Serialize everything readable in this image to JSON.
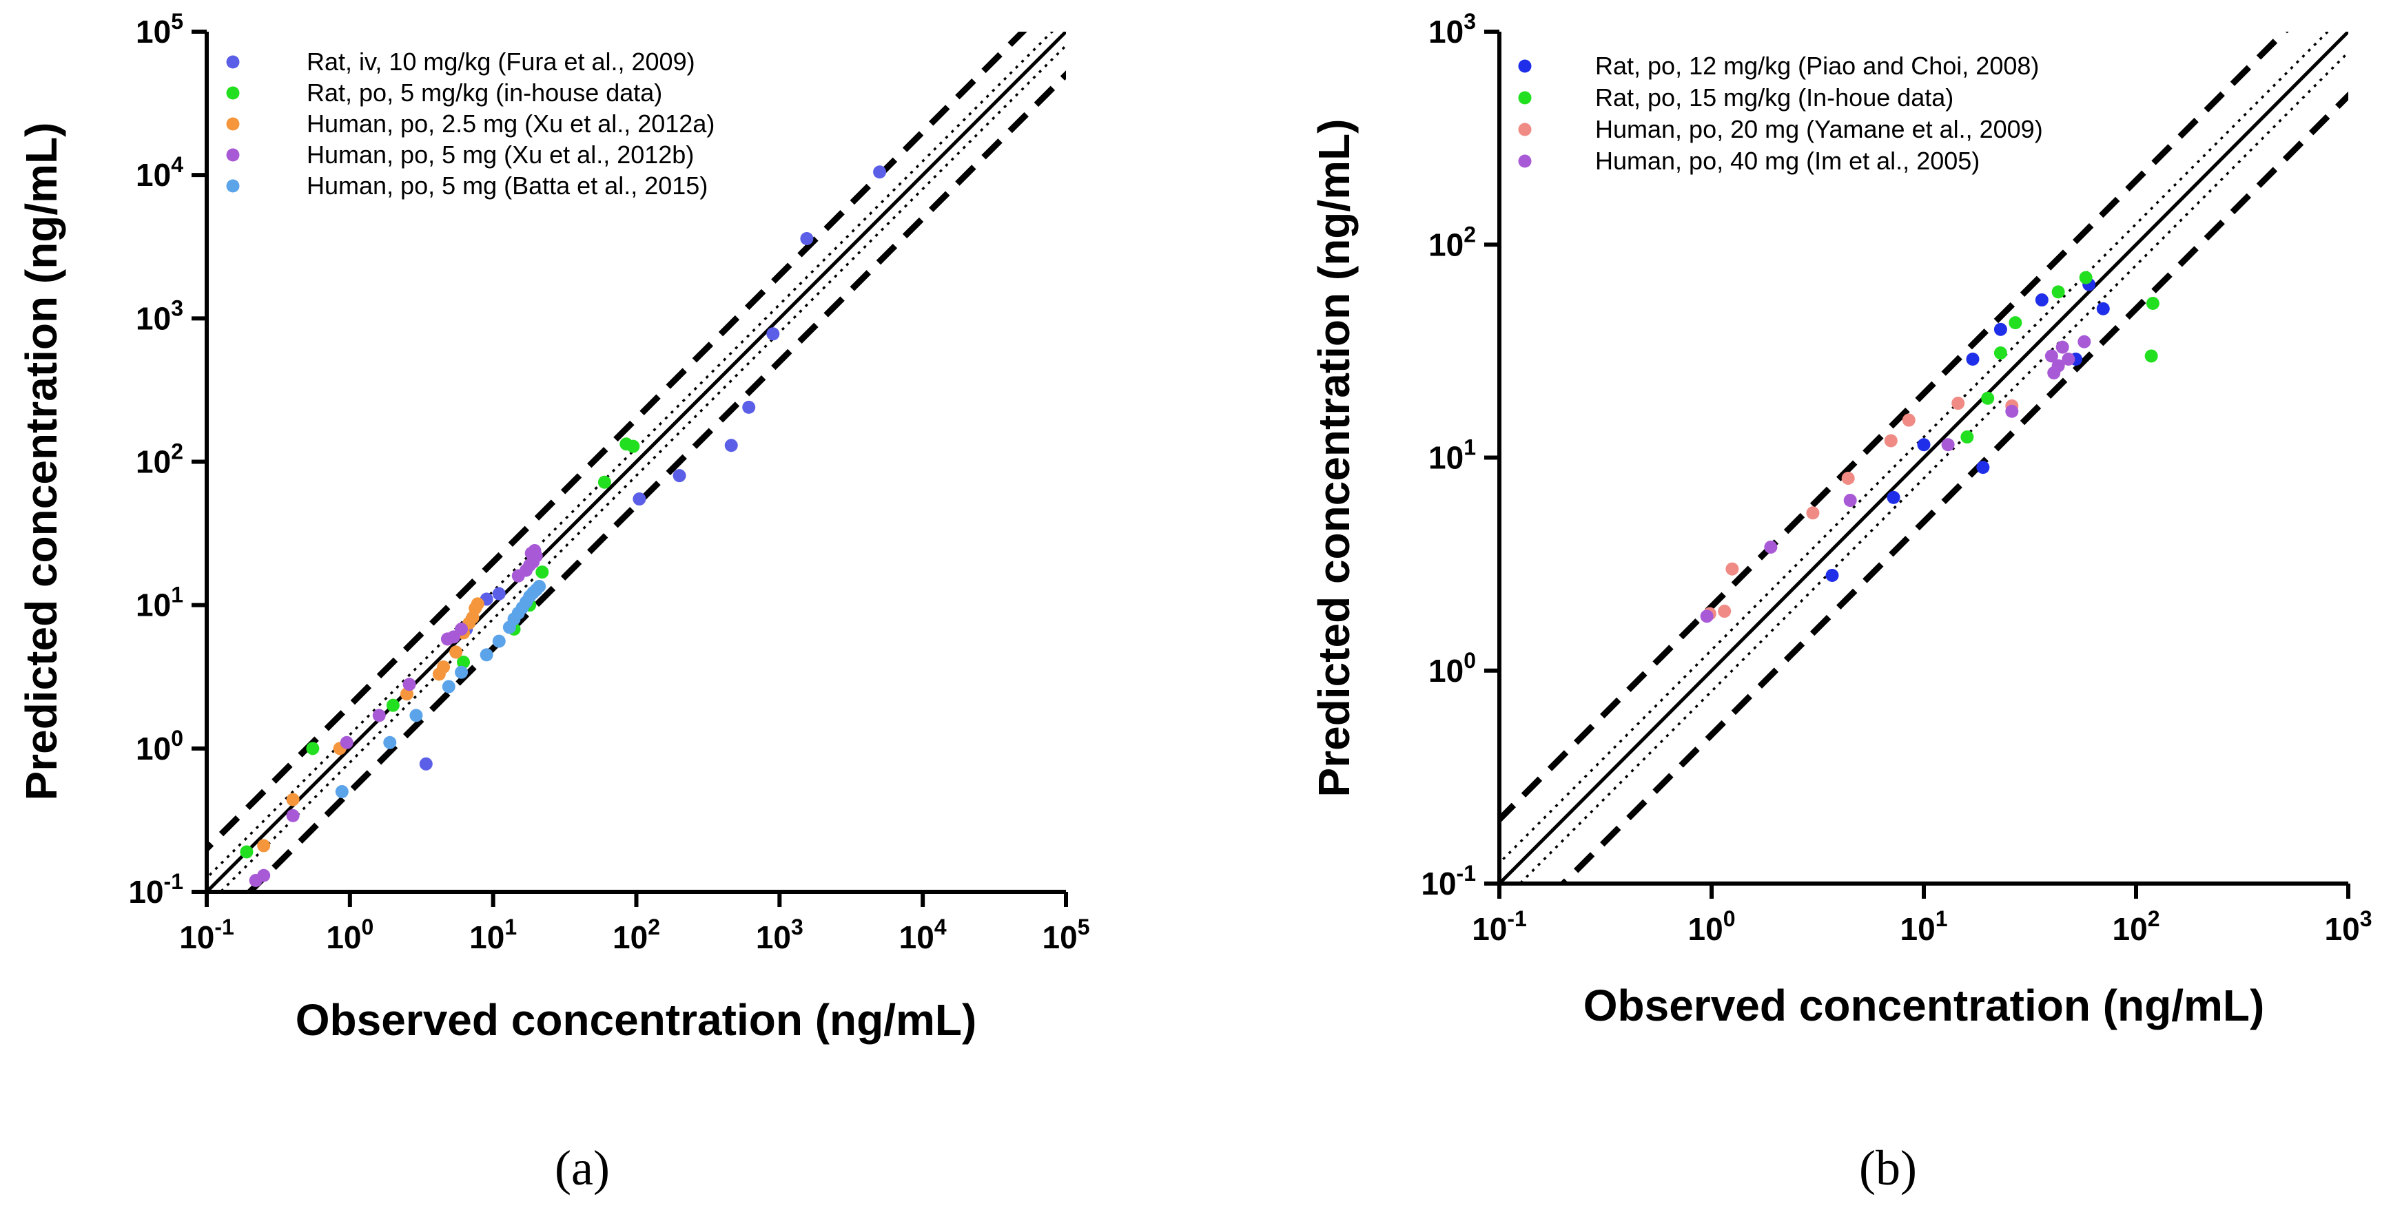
{
  "figure": {
    "panels": [
      {
        "letter": "a",
        "caption": "(a)"
      },
      {
        "letter": "b",
        "caption": "(b)"
      }
    ]
  },
  "chart_data": [
    {
      "type": "scatter",
      "panel": "(a)",
      "xlabel": "Observed concentration (ng/mL)",
      "ylabel": "Predicted concentration (ng/mL)",
      "xscale": "log",
      "yscale": "log",
      "xlim": [
        0.1,
        100000
      ],
      "ylim": [
        0.1,
        100000
      ],
      "xticks": [
        {
          "base": "10",
          "exp": "-1"
        },
        {
          "base": "10",
          "exp": "0"
        },
        {
          "base": "10",
          "exp": "1"
        },
        {
          "base": "10",
          "exp": "2"
        },
        {
          "base": "10",
          "exp": "3"
        },
        {
          "base": "10",
          "exp": "4"
        },
        {
          "base": "10",
          "exp": "5"
        }
      ],
      "yticks": [
        {
          "base": "10",
          "exp": "-1"
        },
        {
          "base": "10",
          "exp": "0"
        },
        {
          "base": "10",
          "exp": "1"
        },
        {
          "base": "10",
          "exp": "2"
        },
        {
          "base": "10",
          "exp": "3"
        },
        {
          "base": "10",
          "exp": "4"
        },
        {
          "base": "10",
          "exp": "5"
        }
      ],
      "reference_lines": [
        {
          "name": "line of identity",
          "fold": 1,
          "style": "solid"
        },
        {
          "name": "1.25-fold",
          "fold": 1.25,
          "style": "dotted"
        },
        {
          "name": "0.8-fold",
          "fold": 0.8,
          "style": "dotted"
        },
        {
          "name": "2-fold",
          "fold": 2,
          "style": "dashed"
        },
        {
          "name": "0.5-fold",
          "fold": 0.5,
          "style": "dashed"
        }
      ],
      "legend_position": "top-left",
      "series": [
        {
          "name": "Rat, iv, 10 mg/kg (Fura et al., 2009)",
          "color": "#5b5ee6",
          "points": [
            [
              5000,
              10500
            ],
            [
              1550,
              3600
            ],
            [
              900,
              780
            ],
            [
              610,
              240
            ],
            [
              460,
              130
            ],
            [
              200,
              80
            ],
            [
              105,
              55
            ],
            [
              3.4,
              0.78
            ],
            [
              11,
              12
            ],
            [
              6.5,
              6.8
            ],
            [
              9,
              11
            ]
          ]
        },
        {
          "name": "Rat, po, 5 mg/kg (in-house data)",
          "color": "#22e01f",
          "points": [
            [
              0.19,
              0.19
            ],
            [
              0.55,
              1.0
            ],
            [
              2.0,
              2.0
            ],
            [
              6.2,
              4.0
            ],
            [
              14,
              6.8
            ],
            [
              18,
              10
            ],
            [
              22,
              17
            ],
            [
              60,
              72
            ],
            [
              85,
              133
            ],
            [
              95,
              128
            ]
          ]
        },
        {
          "name": "Human, po, 2.5 mg (Xu et al., 2012a)",
          "color": "#f5963c",
          "points": [
            [
              0.25,
              0.21
            ],
            [
              0.4,
              0.44
            ],
            [
              0.85,
              1.0
            ],
            [
              2.5,
              2.4
            ],
            [
              4.2,
              3.3
            ],
            [
              4.5,
              3.7
            ],
            [
              5.5,
              4.7
            ],
            [
              6.2,
              6.4
            ],
            [
              6.8,
              7.5
            ],
            [
              7.2,
              8.2
            ],
            [
              7.5,
              9.5
            ],
            [
              7.8,
              10.2
            ]
          ]
        },
        {
          "name": "Human, po, 5 mg (Xu et al., 2012b)",
          "color": "#a85ad6",
          "points": [
            [
              0.22,
              0.12
            ],
            [
              0.25,
              0.13
            ],
            [
              0.4,
              0.34
            ],
            [
              0.95,
              1.1
            ],
            [
              1.6,
              1.7
            ],
            [
              2.6,
              2.8
            ],
            [
              4.8,
              5.8
            ],
            [
              5.3,
              6.0
            ],
            [
              6.0,
              6.8
            ],
            [
              15,
              16
            ],
            [
              17,
              17.5
            ],
            [
              18,
              19
            ],
            [
              19,
              20
            ],
            [
              19.5,
              24
            ],
            [
              20,
              22
            ],
            [
              18.5,
              23
            ]
          ]
        },
        {
          "name": "Human, po, 5 mg (Batta et al., 2015)",
          "color": "#5ba4ea",
          "points": [
            [
              0.88,
              0.5
            ],
            [
              1.9,
              1.1
            ],
            [
              2.9,
              1.7
            ],
            [
              4.9,
              2.7
            ],
            [
              6.0,
              3.4
            ],
            [
              9.0,
              4.5
            ],
            [
              11,
              5.6
            ],
            [
              13,
              7.0
            ],
            [
              14,
              8.0
            ],
            [
              15,
              8.8
            ],
            [
              16,
              9.6
            ],
            [
              17,
              10.5
            ],
            [
              18,
              11.5
            ],
            [
              19,
              12.2
            ],
            [
              20,
              12.8
            ],
            [
              21,
              13.5
            ]
          ]
        }
      ]
    },
    {
      "type": "scatter",
      "panel": "(b)",
      "xlabel": "Observed concentration (ng/mL)",
      "ylabel": "Predicted concentration (ng/mL)",
      "xscale": "log",
      "yscale": "log",
      "xlim": [
        0.1,
        1000
      ],
      "ylim": [
        0.1,
        1000
      ],
      "xticks": [
        {
          "base": "10",
          "exp": "-1"
        },
        {
          "base": "10",
          "exp": "0"
        },
        {
          "base": "10",
          "exp": "1"
        },
        {
          "base": "10",
          "exp": "2"
        },
        {
          "base": "10",
          "exp": "3"
        }
      ],
      "yticks": [
        {
          "base": "10",
          "exp": "-1"
        },
        {
          "base": "10",
          "exp": "0"
        },
        {
          "base": "10",
          "exp": "1"
        },
        {
          "base": "10",
          "exp": "2"
        },
        {
          "base": "10",
          "exp": "3"
        }
      ],
      "reference_lines": [
        {
          "name": "line of identity",
          "fold": 1,
          "style": "solid"
        },
        {
          "name": "1.25-fold",
          "fold": 1.25,
          "style": "dotted"
        },
        {
          "name": "0.8-fold",
          "fold": 0.8,
          "style": "dotted"
        },
        {
          "name": "2-fold",
          "fold": 2,
          "style": "dashed"
        },
        {
          "name": "0.5-fold",
          "fold": 0.5,
          "style": "dashed"
        }
      ],
      "legend_position": "top-left",
      "series": [
        {
          "name": "Rat, po, 12 mg/kg (Piao and Choi, 2008)",
          "color": "#1f2ee8",
          "points": [
            [
              60,
              65
            ],
            [
              36,
              55
            ],
            [
              23,
              40
            ],
            [
              17,
              29
            ],
            [
              70,
              50
            ],
            [
              52,
              29
            ],
            [
              10,
              11.5
            ],
            [
              19,
              9
            ],
            [
              7.2,
              6.5
            ],
            [
              3.7,
              2.8
            ]
          ]
        },
        {
          "name": "Rat, po, 15 mg/kg (In-houe data)",
          "color": "#22e01f",
          "points": [
            [
              58,
              70
            ],
            [
              43,
              60
            ],
            [
              27,
              43
            ],
            [
              23,
              31
            ],
            [
              120,
              53
            ],
            [
              118,
              30
            ],
            [
              20,
              19
            ],
            [
              16,
              12.5
            ]
          ]
        },
        {
          "name": "Human, po, 20 mg (Yamane et al., 2009)",
          "color": "#f08a84",
          "points": [
            [
              0.98,
              1.85
            ],
            [
              1.15,
              1.9
            ],
            [
              1.25,
              3.0
            ],
            [
              3.0,
              5.5
            ],
            [
              4.4,
              8.0
            ],
            [
              7.0,
              12
            ],
            [
              8.5,
              15
            ],
            [
              14.5,
              18
            ],
            [
              26,
              17.5
            ]
          ]
        },
        {
          "name": "Human, po, 40 mg (Im et al., 2005)",
          "color": "#a85ad6",
          "points": [
            [
              0.95,
              1.8
            ],
            [
              1.9,
              3.8
            ],
            [
              4.5,
              6.3
            ],
            [
              13,
              11.5
            ],
            [
              26,
              16.5
            ],
            [
              40,
              30
            ],
            [
              43,
              27
            ],
            [
              45,
              33
            ],
            [
              48,
              29
            ],
            [
              57,
              35
            ],
            [
              41,
              25
            ]
          ]
        }
      ]
    }
  ]
}
